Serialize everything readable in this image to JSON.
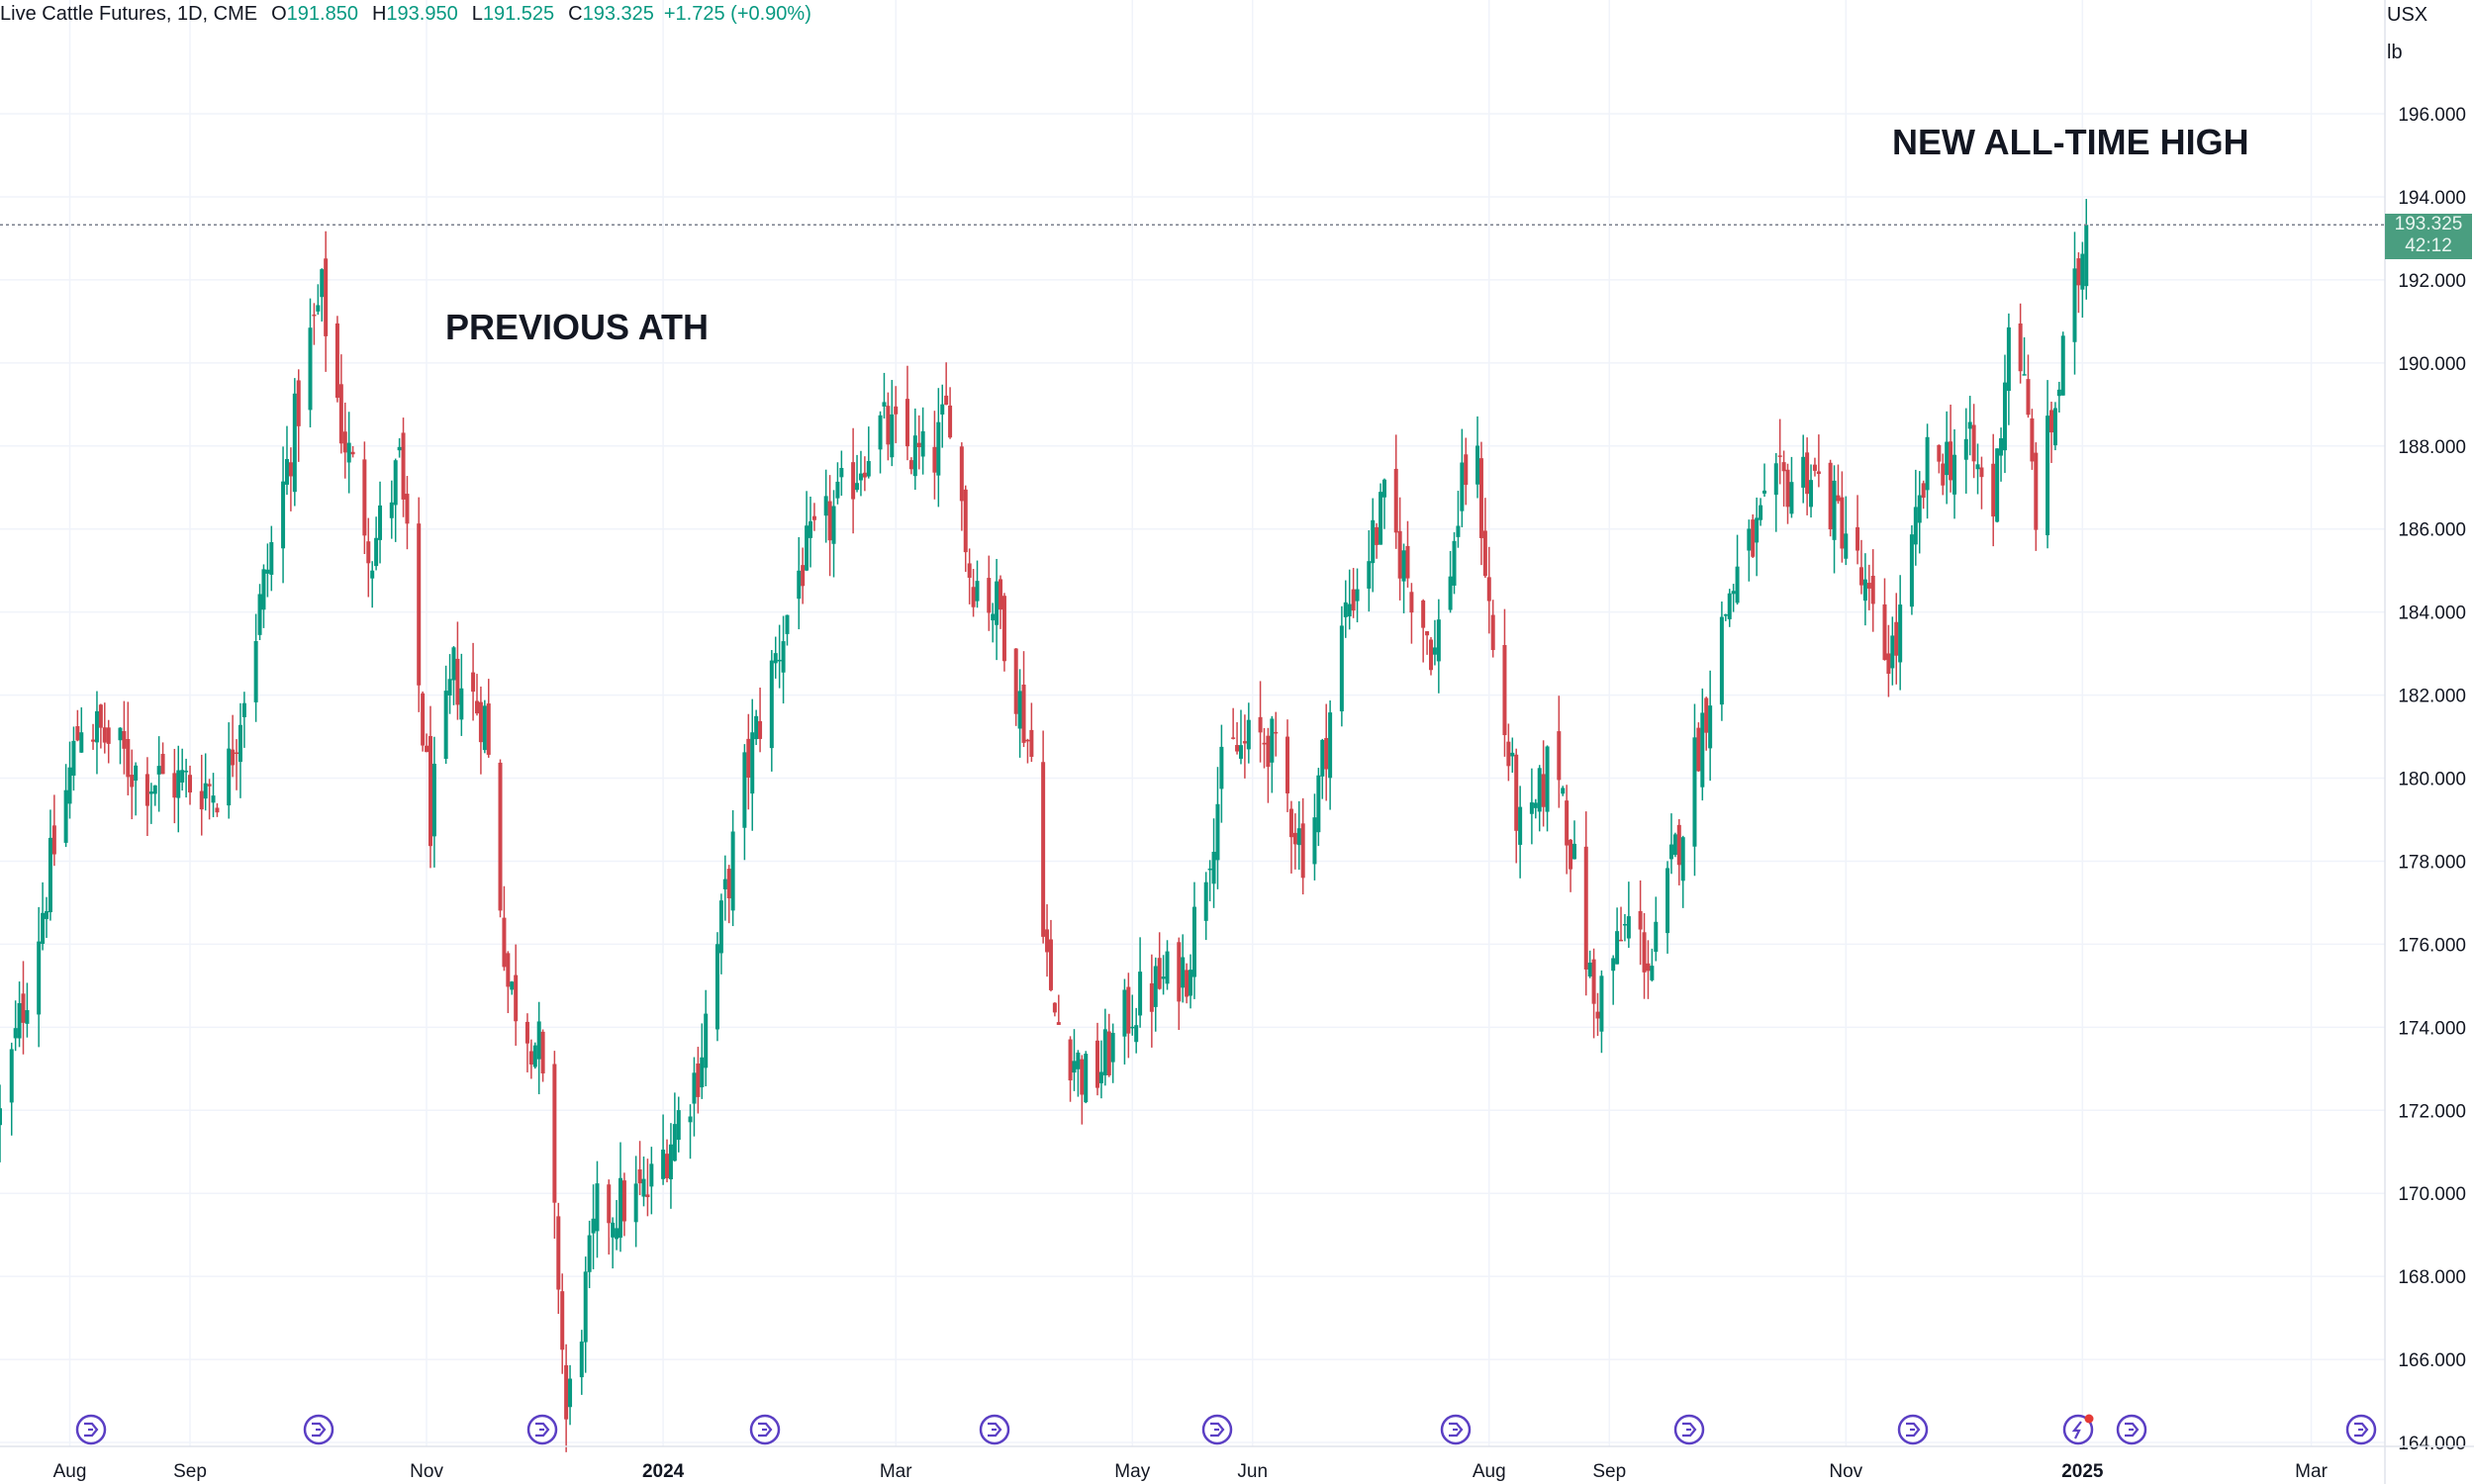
{
  "header": {
    "symbol": "Live Cattle Futures, 1D, CME",
    "open_label": "O",
    "open": "191.850",
    "high_label": "H",
    "high": "193.950",
    "low_label": "L",
    "low": "191.525",
    "close_label": "C",
    "close": "193.325",
    "change": "+1.725 (+0.90%)"
  },
  "scale": {
    "currency": "USX",
    "unit": "lb"
  },
  "last_price": {
    "value": "193.325",
    "countdown": "42:12"
  },
  "annotations": {
    "previous_ath": "PREVIOUS ATH",
    "new_ath": "NEW ALL-TIME HIGH"
  },
  "colors": {
    "up": "#089981",
    "down": "#d0444b",
    "event_icon": "#5b3fc4",
    "grid": "#f0f3fa"
  },
  "event_icons": [
    "event-marker-icon",
    "event-marker-icon",
    "event-marker-icon",
    "event-marker-icon",
    "event-marker-icon",
    "event-marker-icon",
    "event-marker-icon",
    "event-marker-icon",
    "event-marker-icon",
    "lightning-icon",
    "event-marker-icon",
    "event-marker-icon"
  ],
  "chart_data": {
    "type": "candlestick",
    "title": "Live Cattle Futures, 1D, CME",
    "y_ticks": [
      "196.000",
      "194.000",
      "192.000",
      "190.000",
      "188.000",
      "186.000",
      "184.000",
      "182.000",
      "180.000",
      "178.000",
      "176.000",
      "174.000",
      "172.000",
      "170.000",
      "168.000",
      "166.000",
      "164.000"
    ],
    "ylim": [
      164,
      198
    ],
    "x_ticks": [
      "Aug",
      "Sep",
      "Nov",
      "2024",
      "Mar",
      "May",
      "Jun",
      "Aug",
      "Sep",
      "Nov",
      "2025",
      "Mar"
    ],
    "x_range": [
      "2023-07-14",
      "2025-03-20"
    ],
    "grid": true,
    "series": [
      {
        "name": "Live Cattle Futures",
        "anchors": [
          [
            "2023-07-14",
            171.8
          ],
          [
            "2023-08-04",
            181.5
          ],
          [
            "2023-08-20",
            180.0
          ],
          [
            "2023-09-10",
            179.8
          ],
          [
            "2023-09-25",
            187.0
          ],
          [
            "2023-10-02",
            190.5
          ],
          [
            "2023-10-05",
            191.6
          ],
          [
            "2023-10-10",
            188.5
          ],
          [
            "2023-10-18",
            185.5
          ],
          [
            "2023-10-25",
            187.5
          ],
          [
            "2023-11-02",
            179.0
          ],
          [
            "2023-11-08",
            182.5
          ],
          [
            "2023-11-16",
            181.5
          ],
          [
            "2023-11-22",
            175.0
          ],
          [
            "2023-11-30",
            173.5
          ],
          [
            "2023-12-05",
            168.0
          ],
          [
            "2023-12-07",
            164.5
          ],
          [
            "2023-12-15",
            169.5
          ],
          [
            "2023-12-28",
            170.0
          ],
          [
            "2024-01-10",
            173.0
          ],
          [
            "2024-01-22",
            180.0
          ],
          [
            "2024-02-05",
            185.0
          ],
          [
            "2024-02-15",
            186.5
          ],
          [
            "2024-02-25",
            188.5
          ],
          [
            "2024-03-10",
            187.5
          ],
          [
            "2024-03-15",
            189.0
          ],
          [
            "2024-03-20",
            185.0
          ],
          [
            "2024-03-28",
            184.0
          ],
          [
            "2024-04-05",
            180.5
          ],
          [
            "2024-04-10",
            174.5
          ],
          [
            "2024-04-20",
            172.5
          ],
          [
            "2024-05-01",
            174.5
          ],
          [
            "2024-05-15",
            175.5
          ],
          [
            "2024-05-25",
            180.5
          ],
          [
            "2024-06-05",
            181.0
          ],
          [
            "2024-06-15",
            178.0
          ],
          [
            "2024-06-25",
            184.0
          ],
          [
            "2024-07-05",
            186.5
          ],
          [
            "2024-07-18",
            183.0
          ],
          [
            "2024-07-28",
            188.5
          ],
          [
            "2024-08-02",
            183.0
          ],
          [
            "2024-08-10",
            178.0
          ],
          [
            "2024-08-18",
            181.0
          ],
          [
            "2024-08-28",
            174.5
          ],
          [
            "2024-09-06",
            176.5
          ],
          [
            "2024-09-12",
            175.5
          ],
          [
            "2024-09-22",
            180.0
          ],
          [
            "2024-10-02",
            184.5
          ],
          [
            "2024-10-15",
            187.0
          ],
          [
            "2024-10-22",
            187.5
          ],
          [
            "2024-11-01",
            186.0
          ],
          [
            "2024-11-10",
            183.0
          ],
          [
            "2024-11-14",
            183.2
          ],
          [
            "2024-11-22",
            187.5
          ],
          [
            "2024-12-02",
            188.0
          ],
          [
            "2024-12-09",
            186.5
          ],
          [
            "2024-12-14",
            192.0
          ],
          [
            "2024-12-20",
            186.5
          ],
          [
            "2024-12-24",
            188.5
          ],
          [
            "2024-12-30",
            191.6
          ],
          [
            "2025-01-02",
            193.3
          ]
        ]
      }
    ],
    "last_close": 193.325
  }
}
